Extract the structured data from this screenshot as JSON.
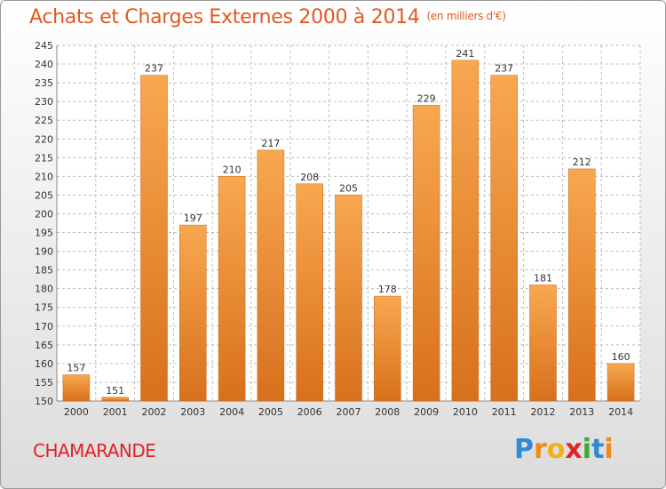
{
  "title": "Achats et Charges Externes 2000 à 2014",
  "unit": "(en milliers d'€)",
  "commune": "CHAMARANDE",
  "logo": {
    "text": "Proxiti",
    "letters": [
      "P",
      "r",
      "o",
      "x",
      "i",
      "t",
      "i"
    ],
    "colors": [
      "#2e8bd8",
      "#ef8a1a",
      "#f3b014",
      "#e22424",
      "#3aaa35",
      "#2e8bd8",
      "#ef8a1a"
    ]
  },
  "colors": {
    "accent": "#e05a1f",
    "bar_top": "#f8a84f",
    "bar_bottom": "#d8701c",
    "commune": "#e0222b",
    "grid": "#bdbdbd"
  },
  "chart_data": {
    "type": "bar",
    "categories": [
      "2000",
      "2001",
      "2002",
      "2003",
      "2004",
      "2005",
      "2006",
      "2007",
      "2008",
      "2009",
      "2010",
      "2011",
      "2012",
      "2013",
      "2014"
    ],
    "values": [
      157,
      151,
      237,
      197,
      210,
      217,
      208,
      205,
      178,
      229,
      241,
      237,
      181,
      212,
      160
    ],
    "ylim": [
      150,
      245
    ],
    "yticks": [
      150,
      155,
      160,
      165,
      170,
      175,
      180,
      185,
      190,
      195,
      200,
      205,
      210,
      215,
      220,
      225,
      230,
      235,
      240,
      245
    ],
    "grid": true,
    "xlabel": "",
    "ylabel": ""
  }
}
